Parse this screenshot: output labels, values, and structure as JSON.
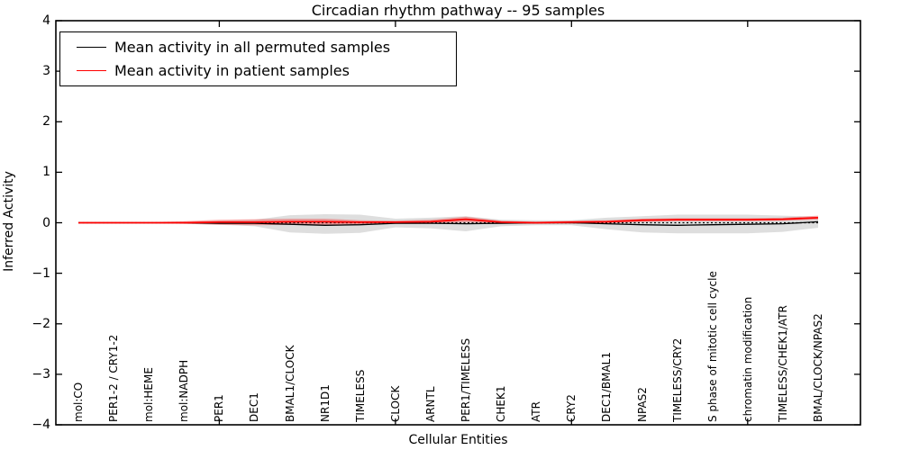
{
  "figure": {
    "title": "Circadian rhythm pathway -- 95 samples",
    "xlabel": "Cellular Entities",
    "ylabel": "Inferred Activity"
  },
  "legend": {
    "entries": [
      {
        "label": "Mean activity in all permuted samples",
        "color": "#000000"
      },
      {
        "label": "Mean activity in patient samples",
        "color": "#ff0000"
      }
    ]
  },
  "chart_data": {
    "type": "line",
    "title": "Circadian rhythm pathway -- 95 samples",
    "xlabel": "Cellular Entities",
    "ylabel": "Inferred Activity",
    "ylim": [
      -4,
      4
    ],
    "yticks": [
      4,
      3,
      2,
      1,
      0,
      -1,
      -2,
      -3,
      -4
    ],
    "grid": false,
    "legend_position": "upper left",
    "categories": [
      "mol:CO",
      "PER1-2 / CRY1-2",
      "mol:HEME",
      "mol:NADPH",
      "PER1",
      "DEC1",
      "BMAL1/CLOCK",
      "NR1D1",
      "TIMELESS",
      "CLOCK",
      "ARNTL",
      "PER1/TIMELESS",
      "CHEK1",
      "ATR",
      "CRY2",
      "DEC1/BMAL1",
      "NPAS2",
      "TIMELESS/CRY2",
      "S phase of mitotic cell cycle",
      "chromatin modification",
      "TIMELESS/CHEK1/ATR",
      "BMAL/CLOCK/NPAS2"
    ],
    "xtick_major_indices": [
      4,
      9,
      14,
      19
    ],
    "zero_line": {
      "y": 0,
      "color": "#000000",
      "style": "dashed"
    },
    "series": [
      {
        "name": "permuted-std-band",
        "type": "band",
        "color": "rgba(0,0,0,0.13)",
        "upper": [
          0.01,
          0.01,
          0.01,
          0.02,
          0.04,
          0.06,
          0.15,
          0.17,
          0.16,
          0.08,
          0.1,
          0.13,
          0.06,
          0.05,
          0.05,
          0.1,
          0.13,
          0.16,
          0.16,
          0.16,
          0.14,
          0.12
        ],
        "lower": [
          -0.01,
          -0.01,
          -0.01,
          -0.02,
          -0.04,
          -0.07,
          -0.19,
          -0.22,
          -0.2,
          -0.09,
          -0.11,
          -0.17,
          -0.07,
          -0.05,
          -0.05,
          -0.13,
          -0.19,
          -0.21,
          -0.21,
          -0.21,
          -0.18,
          -0.1
        ]
      },
      {
        "name": "patient-std-band",
        "type": "band",
        "color": "rgba(255,0,0,0.30)",
        "upper": [
          0.01,
          0.01,
          0.01,
          0.03,
          0.06,
          0.07,
          0.08,
          0.08,
          0.05,
          0.04,
          0.06,
          0.12,
          0.04,
          0.02,
          0.04,
          0.05,
          0.08,
          0.09,
          0.09,
          0.09,
          0.1,
          0.14
        ],
        "lower": [
          -0.01,
          -0.01,
          -0.01,
          -0.02,
          -0.04,
          -0.05,
          -0.04,
          -0.04,
          -0.03,
          -0.02,
          -0.02,
          0.01,
          -0.02,
          -0.02,
          -0.02,
          -0.01,
          0.02,
          0.03,
          0.03,
          0.03,
          0.04,
          0.06
        ]
      },
      {
        "name": "Mean activity in all permuted samples",
        "type": "line",
        "color": "#000000",
        "width": 1.3,
        "values": [
          0,
          0,
          0,
          0,
          -0.01,
          -0.01,
          -0.03,
          -0.05,
          -0.04,
          -0.01,
          -0.01,
          -0.02,
          -0.01,
          0,
          0,
          -0.02,
          -0.04,
          -0.05,
          -0.04,
          -0.03,
          -0.02,
          0.02
        ]
      },
      {
        "name": "Mean activity in patient samples",
        "type": "line",
        "color": "#ff0000",
        "width": 1.8,
        "values": [
          0,
          0,
          0,
          0,
          0.01,
          0.01,
          0.02,
          0.02,
          0.01,
          0.01,
          0.02,
          0.07,
          0.01,
          0,
          0.01,
          0.02,
          0.05,
          0.06,
          0.06,
          0.06,
          0.07,
          0.1
        ]
      }
    ]
  }
}
